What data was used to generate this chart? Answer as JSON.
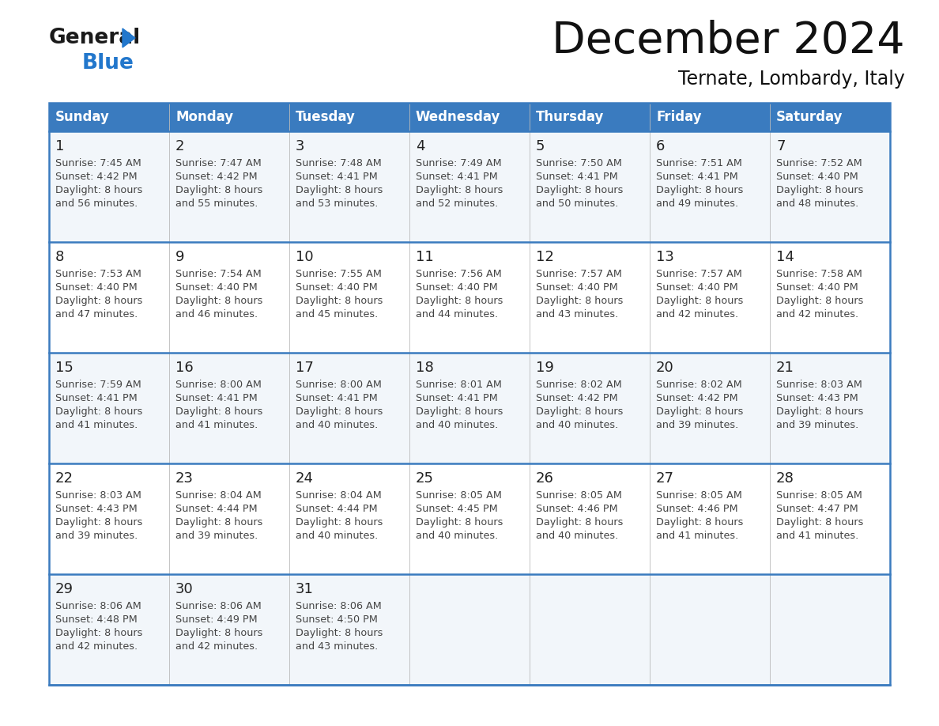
{
  "title": "December 2024",
  "subtitle": "Ternate, Lombardy, Italy",
  "header_bg_color": "#3a7bbf",
  "header_text_color": "#ffffff",
  "day_names": [
    "Sunday",
    "Monday",
    "Tuesday",
    "Wednesday",
    "Thursday",
    "Friday",
    "Saturday"
  ],
  "row_bg_even": "#f2f6fa",
  "row_bg_odd": "#ffffff",
  "separator_color": "#3a7bbf",
  "col_line_color": "#bbbbbb",
  "cell_text_color": "#444444",
  "date_num_color": "#222222",
  "logo_general_color": "#1a1a1a",
  "logo_blue_color": "#2277cc",
  "title_color": "#111111",
  "subtitle_color": "#111111",
  "calendar_data": [
    [
      {
        "day": 1,
        "sunrise": "7:45 AM",
        "sunset": "4:42 PM",
        "daylight_hours": 8,
        "daylight_minutes": 56
      },
      {
        "day": 2,
        "sunrise": "7:47 AM",
        "sunset": "4:42 PM",
        "daylight_hours": 8,
        "daylight_minutes": 55
      },
      {
        "day": 3,
        "sunrise": "7:48 AM",
        "sunset": "4:41 PM",
        "daylight_hours": 8,
        "daylight_minutes": 53
      },
      {
        "day": 4,
        "sunrise": "7:49 AM",
        "sunset": "4:41 PM",
        "daylight_hours": 8,
        "daylight_minutes": 52
      },
      {
        "day": 5,
        "sunrise": "7:50 AM",
        "sunset": "4:41 PM",
        "daylight_hours": 8,
        "daylight_minutes": 50
      },
      {
        "day": 6,
        "sunrise": "7:51 AM",
        "sunset": "4:41 PM",
        "daylight_hours": 8,
        "daylight_minutes": 49
      },
      {
        "day": 7,
        "sunrise": "7:52 AM",
        "sunset": "4:40 PM",
        "daylight_hours": 8,
        "daylight_minutes": 48
      }
    ],
    [
      {
        "day": 8,
        "sunrise": "7:53 AM",
        "sunset": "4:40 PM",
        "daylight_hours": 8,
        "daylight_minutes": 47
      },
      {
        "day": 9,
        "sunrise": "7:54 AM",
        "sunset": "4:40 PM",
        "daylight_hours": 8,
        "daylight_minutes": 46
      },
      {
        "day": 10,
        "sunrise": "7:55 AM",
        "sunset": "4:40 PM",
        "daylight_hours": 8,
        "daylight_minutes": 45
      },
      {
        "day": 11,
        "sunrise": "7:56 AM",
        "sunset": "4:40 PM",
        "daylight_hours": 8,
        "daylight_minutes": 44
      },
      {
        "day": 12,
        "sunrise": "7:57 AM",
        "sunset": "4:40 PM",
        "daylight_hours": 8,
        "daylight_minutes": 43
      },
      {
        "day": 13,
        "sunrise": "7:57 AM",
        "sunset": "4:40 PM",
        "daylight_hours": 8,
        "daylight_minutes": 42
      },
      {
        "day": 14,
        "sunrise": "7:58 AM",
        "sunset": "4:40 PM",
        "daylight_hours": 8,
        "daylight_minutes": 42
      }
    ],
    [
      {
        "day": 15,
        "sunrise": "7:59 AM",
        "sunset": "4:41 PM",
        "daylight_hours": 8,
        "daylight_minutes": 41
      },
      {
        "day": 16,
        "sunrise": "8:00 AM",
        "sunset": "4:41 PM",
        "daylight_hours": 8,
        "daylight_minutes": 41
      },
      {
        "day": 17,
        "sunrise": "8:00 AM",
        "sunset": "4:41 PM",
        "daylight_hours": 8,
        "daylight_minutes": 40
      },
      {
        "day": 18,
        "sunrise": "8:01 AM",
        "sunset": "4:41 PM",
        "daylight_hours": 8,
        "daylight_minutes": 40
      },
      {
        "day": 19,
        "sunrise": "8:02 AM",
        "sunset": "4:42 PM",
        "daylight_hours": 8,
        "daylight_minutes": 40
      },
      {
        "day": 20,
        "sunrise": "8:02 AM",
        "sunset": "4:42 PM",
        "daylight_hours": 8,
        "daylight_minutes": 39
      },
      {
        "day": 21,
        "sunrise": "8:03 AM",
        "sunset": "4:43 PM",
        "daylight_hours": 8,
        "daylight_minutes": 39
      }
    ],
    [
      {
        "day": 22,
        "sunrise": "8:03 AM",
        "sunset": "4:43 PM",
        "daylight_hours": 8,
        "daylight_minutes": 39
      },
      {
        "day": 23,
        "sunrise": "8:04 AM",
        "sunset": "4:44 PM",
        "daylight_hours": 8,
        "daylight_minutes": 39
      },
      {
        "day": 24,
        "sunrise": "8:04 AM",
        "sunset": "4:44 PM",
        "daylight_hours": 8,
        "daylight_minutes": 40
      },
      {
        "day": 25,
        "sunrise": "8:05 AM",
        "sunset": "4:45 PM",
        "daylight_hours": 8,
        "daylight_minutes": 40
      },
      {
        "day": 26,
        "sunrise": "8:05 AM",
        "sunset": "4:46 PM",
        "daylight_hours": 8,
        "daylight_minutes": 40
      },
      {
        "day": 27,
        "sunrise": "8:05 AM",
        "sunset": "4:46 PM",
        "daylight_hours": 8,
        "daylight_minutes": 41
      },
      {
        "day": 28,
        "sunrise": "8:05 AM",
        "sunset": "4:47 PM",
        "daylight_hours": 8,
        "daylight_minutes": 41
      }
    ],
    [
      {
        "day": 29,
        "sunrise": "8:06 AM",
        "sunset": "4:48 PM",
        "daylight_hours": 8,
        "daylight_minutes": 42
      },
      {
        "day": 30,
        "sunrise": "8:06 AM",
        "sunset": "4:49 PM",
        "daylight_hours": 8,
        "daylight_minutes": 42
      },
      {
        "day": 31,
        "sunrise": "8:06 AM",
        "sunset": "4:50 PM",
        "daylight_hours": 8,
        "daylight_minutes": 43
      },
      null,
      null,
      null,
      null
    ]
  ]
}
